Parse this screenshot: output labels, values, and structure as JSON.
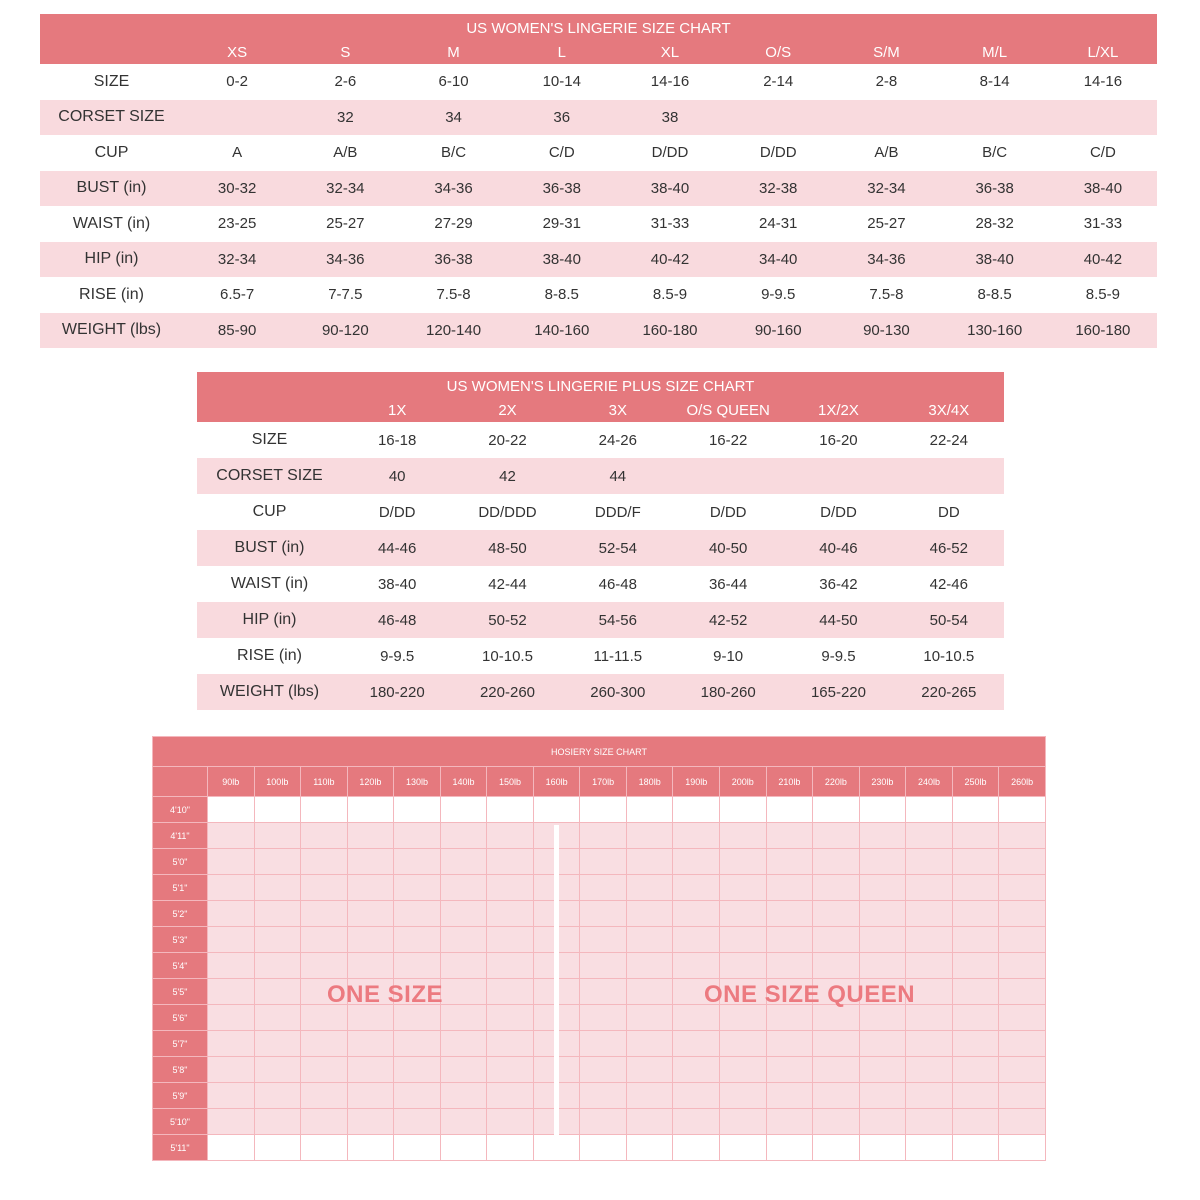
{
  "chart1": {
    "title": "US WOMEN'S LINGERIE SIZE CHART",
    "columns": [
      "XS",
      "S",
      "M",
      "L",
      "XL",
      "O/S",
      "S/M",
      "M/L",
      "L/XL"
    ],
    "rows": [
      {
        "label": "SIZE",
        "values": [
          "0-2",
          "2-6",
          "6-10",
          "10-14",
          "14-16",
          "2-14",
          "2-8",
          "8-14",
          "14-16"
        ]
      },
      {
        "label": "CORSET SIZE",
        "values": [
          "",
          "32",
          "34",
          "36",
          "38",
          "",
          "",
          "",
          ""
        ]
      },
      {
        "label": "CUP",
        "values": [
          "A",
          "A/B",
          "B/C",
          "C/D",
          "D/DD",
          "D/DD",
          "A/B",
          "B/C",
          "C/D"
        ]
      },
      {
        "label": "BUST (in)",
        "values": [
          "30-32",
          "32-34",
          "34-36",
          "36-38",
          "38-40",
          "32-38",
          "32-34",
          "36-38",
          "38-40"
        ]
      },
      {
        "label": "WAIST (in)",
        "values": [
          "23-25",
          "25-27",
          "27-29",
          "29-31",
          "31-33",
          "24-31",
          "25-27",
          "28-32",
          "31-33"
        ]
      },
      {
        "label": "HIP (in)",
        "values": [
          "32-34",
          "34-36",
          "36-38",
          "38-40",
          "40-42",
          "34-40",
          "34-36",
          "38-40",
          "40-42"
        ]
      },
      {
        "label": "RISE (in)",
        "values": [
          "6.5-7",
          "7-7.5",
          "7.5-8",
          "8-8.5",
          "8.5-9",
          "9-9.5",
          "7.5-8",
          "8-8.5",
          "8.5-9"
        ]
      },
      {
        "label": "WEIGHT (lbs)",
        "values": [
          "85-90",
          "90-120",
          "120-140",
          "140-160",
          "160-180",
          "90-160",
          "90-130",
          "130-160",
          "160-180"
        ]
      }
    ]
  },
  "chart2": {
    "title": "US WOMEN'S LINGERIE PLUS SIZE CHART",
    "columns": [
      "1X",
      "2X",
      "3X",
      "O/S QUEEN",
      "1X/2X",
      "3X/4X"
    ],
    "rows": [
      {
        "label": "SIZE",
        "values": [
          "16-18",
          "20-22",
          "24-26",
          "16-22",
          "16-20",
          "22-24"
        ]
      },
      {
        "label": "CORSET SIZE",
        "values": [
          "40",
          "42",
          "44",
          "",
          "",
          ""
        ]
      },
      {
        "label": "CUP",
        "values": [
          "D/DD",
          "DD/DDD",
          "DDD/F",
          "D/DD",
          "D/DD",
          "DD"
        ]
      },
      {
        "label": "BUST (in)",
        "values": [
          "44-46",
          "48-50",
          "52-54",
          "40-50",
          "40-46",
          "46-52"
        ]
      },
      {
        "label": "WAIST (in)",
        "values": [
          "38-40",
          "42-44",
          "46-48",
          "36-44",
          "36-42",
          "42-46"
        ]
      },
      {
        "label": "HIP (in)",
        "values": [
          "46-48",
          "50-52",
          "54-56",
          "42-52",
          "44-50",
          "50-54"
        ]
      },
      {
        "label": "RISE (in)",
        "values": [
          "9-9.5",
          "10-10.5",
          "11-11.5",
          "9-10",
          "9-9.5",
          "10-10.5"
        ]
      },
      {
        "label": "WEIGHT (lbs)",
        "values": [
          "180-220",
          "220-260",
          "260-300",
          "180-260",
          "165-220",
          "220-265"
        ]
      }
    ]
  },
  "hosiery": {
    "title": "HOSIERY SIZE CHART",
    "weights": [
      "90lb",
      "100lb",
      "110lb",
      "120lb",
      "130lb",
      "140lb",
      "150lb",
      "160lb",
      "170lb",
      "180lb",
      "190lb",
      "200lb",
      "210lb",
      "220lb",
      "230lb",
      "240lb",
      "250lb",
      "260lb"
    ],
    "heights": [
      "4'10\"",
      "4'11\"",
      "5'0\"",
      "5'1\"",
      "5'2\"",
      "5'3\"",
      "5'4\"",
      "5'5\"",
      "5'6\"",
      "5'7\"",
      "5'8\"",
      "5'9\"",
      "5'10\"",
      "5'11\""
    ],
    "one_size": "ONE SIZE",
    "one_size_queen": "ONE SIZE QUEEN"
  },
  "colors": {
    "header": "#e5797e",
    "stripe": "#f9dade",
    "label_text": "#ec7a80"
  }
}
